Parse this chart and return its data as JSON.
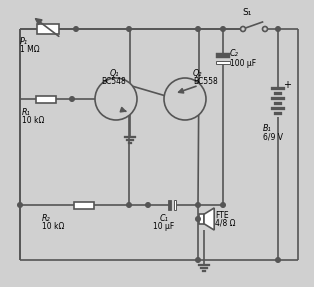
{
  "bg": "#d0d0d0",
  "lc": "#555555",
  "lw": 1.2,
  "labels": {
    "S1": "S₁",
    "P1a": "P₁",
    "P1b": "1 MΩ",
    "Q1a": "Q₁",
    "Q1b": "BC548",
    "Q2a": "Q₂",
    "Q2b": "BC558",
    "R1a": "R₁",
    "R1b": "10 kΩ",
    "R2a": "R₂",
    "R2b": "10 kΩ",
    "C1a": "C₁",
    "C1b": "10 μF",
    "C2a": "C₂",
    "C2b": "100 μF",
    "B1a": "B₁",
    "B1b": "6/9 V",
    "FTEa": "FTE",
    "FTEb": "4/8 Ω",
    "plus": "+"
  },
  "fs": 6.0
}
